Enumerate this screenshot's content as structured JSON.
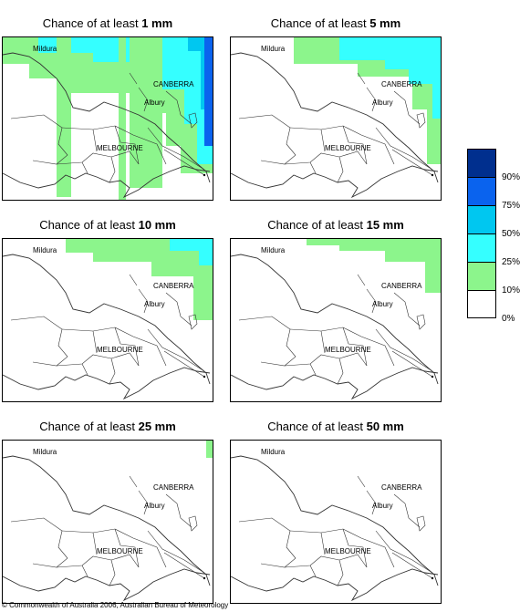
{
  "title_prefix": "Chance of at least",
  "panels": [
    {
      "amount": "1 mm",
      "level": 1
    },
    {
      "amount": "5 mm",
      "level": 2
    },
    {
      "amount": "10 mm",
      "level": 3
    },
    {
      "amount": "15 mm",
      "level": 4
    },
    {
      "amount": "25 mm",
      "level": 5
    },
    {
      "amount": "50 mm",
      "level": 6
    }
  ],
  "cities": {
    "mildura": "Mildura",
    "canberra": "CANBERRA",
    "albury": "Albury",
    "melbourne": "MELBOURNE"
  },
  "legend": {
    "labels": [
      "90%",
      "75%",
      "50%",
      "25%",
      "10%",
      "0%"
    ],
    "colors": [
      "#002f8e",
      "#0a63ee",
      "#00c7f0",
      "#35ffff",
      "#8cf58c",
      "#ffffff"
    ]
  },
  "copyright": "© Commonwealth of Australia 2006, Australian Bureau of Meteorology"
}
